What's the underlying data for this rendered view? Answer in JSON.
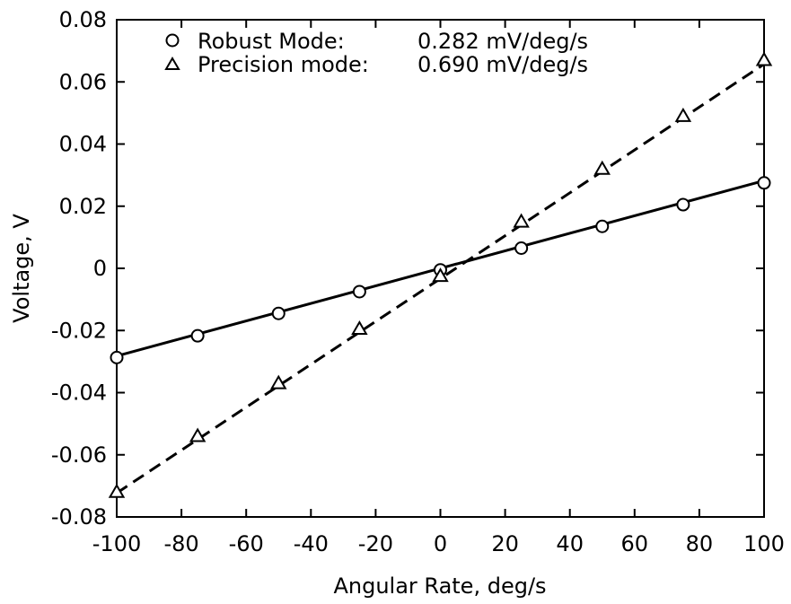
{
  "chart_data": {
    "type": "scatter",
    "title": "",
    "xlabel": "Angular Rate, deg/s",
    "ylabel": "Voltage, V",
    "xlim": [
      -100,
      100
    ],
    "ylim": [
      -0.08,
      0.08
    ],
    "grid": false,
    "legend_position": "top-left",
    "x_ticks": [
      "-100",
      "-80",
      "-60",
      "-40",
      "-20",
      "0",
      "20",
      "40",
      "60",
      "80",
      "100"
    ],
    "y_ticks": [
      "-0.08",
      "-0.06",
      "-0.04",
      "-0.02",
      "0",
      "0.02",
      "0.04",
      "0.06",
      "0.08"
    ],
    "series": [
      {
        "name": "Robust Mode:",
        "sensitivity": "0.282 mV/deg/s",
        "marker": "circle",
        "line": "solid",
        "fit": {
          "slope": 0.000282,
          "intercept": 0.0
        },
        "x": [
          -100,
          -75,
          -50,
          -25,
          0,
          25,
          50,
          75,
          100
        ],
        "y": [
          -0.0287,
          -0.0217,
          -0.0145,
          -0.0075,
          -0.0005,
          0.0065,
          0.0135,
          0.0205,
          0.0275
        ]
      },
      {
        "name": "Precision mode:",
        "sensitivity": "0.690 mV/deg/s",
        "marker": "triangle",
        "line": "dashed",
        "fit": {
          "slope": 0.00069,
          "intercept": -0.0033
        },
        "x": [
          -100,
          -75,
          -50,
          -25,
          0,
          25,
          50,
          75,
          100
        ],
        "y": [
          -0.072,
          -0.054,
          -0.037,
          -0.0195,
          -0.0025,
          0.015,
          0.032,
          0.049,
          0.067
        ]
      }
    ]
  }
}
